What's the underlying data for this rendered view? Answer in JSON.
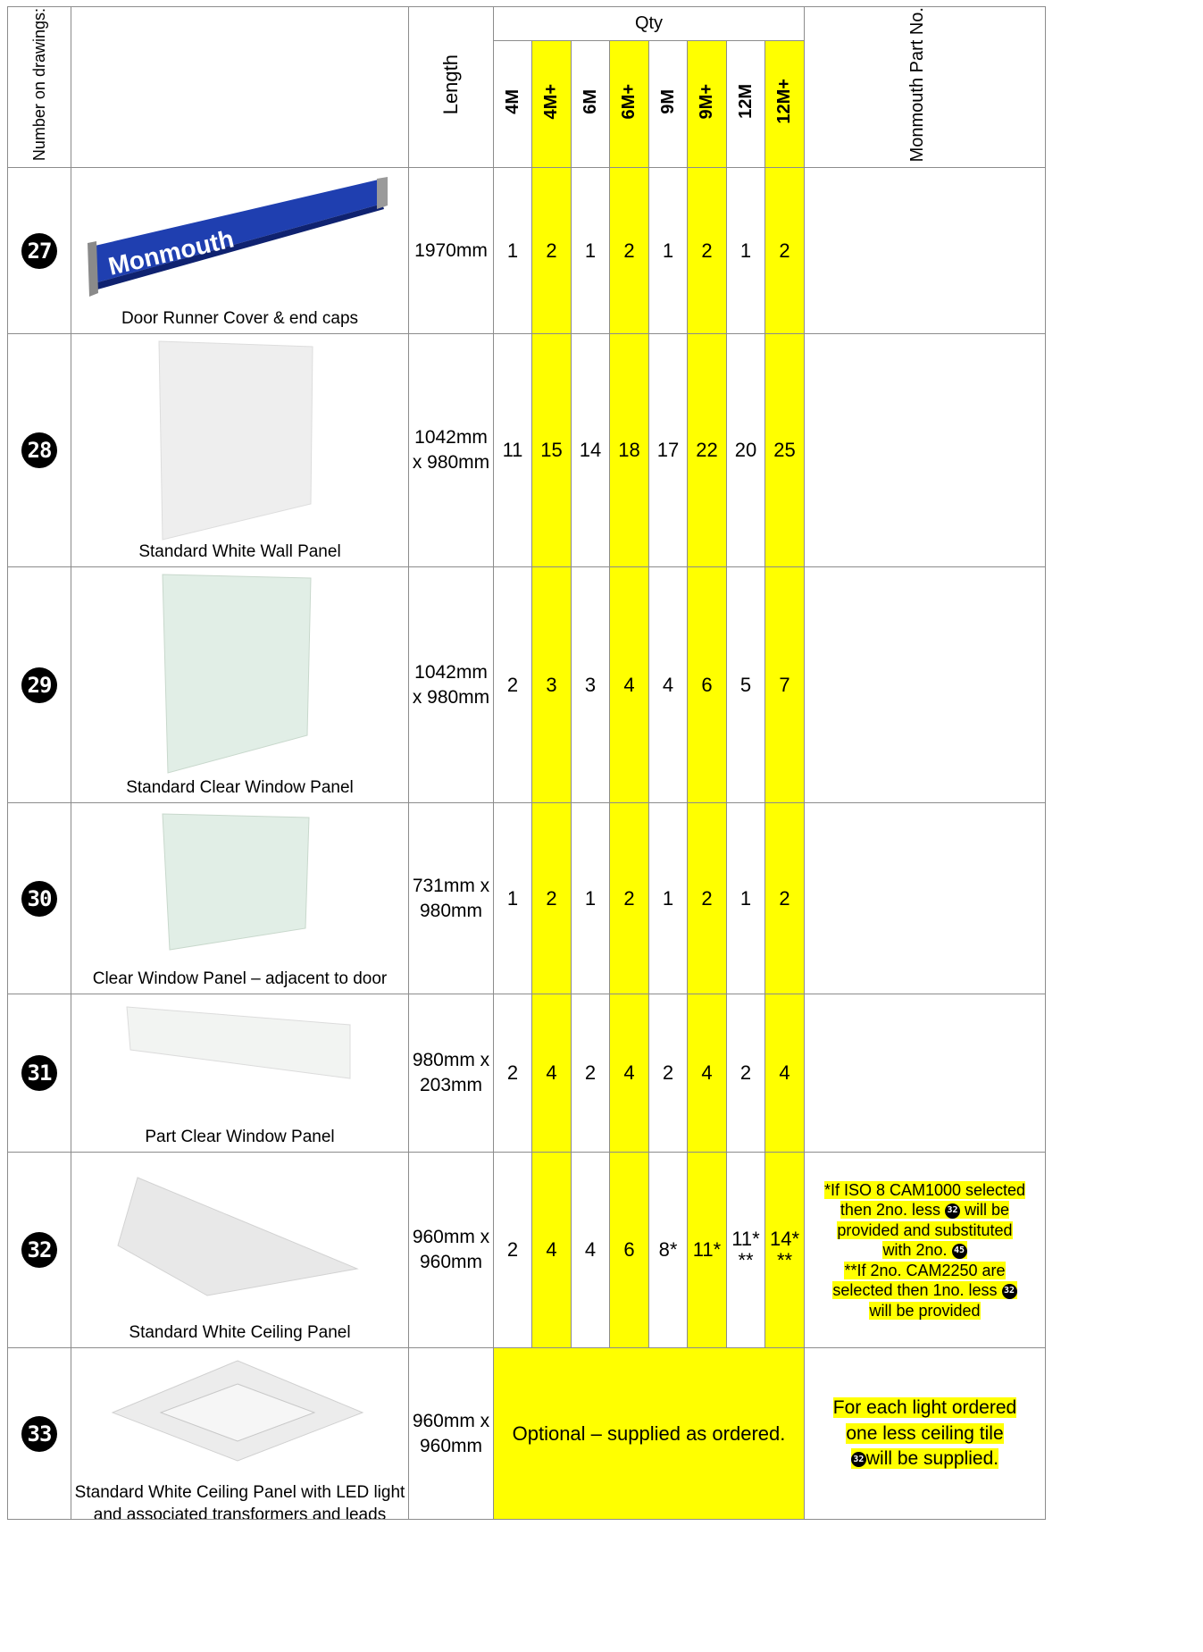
{
  "header": {
    "number_col": "Number on drawings:",
    "length_col": "Length",
    "qty": "Qty",
    "part_col": "Monmouth Part No.",
    "sizes": [
      "4M",
      "4M+",
      "6M",
      "6M+",
      "9M",
      "9M+",
      "12M",
      "12M+"
    ]
  },
  "colors": {
    "highlight": "#ffff00",
    "panel_blue": "#1f3fb0"
  },
  "rows": [
    {
      "num": "27",
      "desc": "Door Runner Cover & end caps",
      "brand": "Monmouth",
      "length": [
        "1970mm"
      ],
      "qty": [
        "1",
        "2",
        "1",
        "2",
        "1",
        "2",
        "1",
        "2"
      ],
      "part": ""
    },
    {
      "num": "28",
      "desc": "Standard White Wall Panel",
      "length": [
        "1042mm",
        "x 980mm"
      ],
      "qty": [
        "11",
        "15",
        "14",
        "18",
        "17",
        "22",
        "20",
        "25"
      ],
      "part": ""
    },
    {
      "num": "29",
      "desc": "Standard Clear Window Panel",
      "length": [
        "1042mm",
        "x 980mm"
      ],
      "qty": [
        "2",
        "3",
        "3",
        "4",
        "4",
        "6",
        "5",
        "7"
      ],
      "part": ""
    },
    {
      "num": "30",
      "desc": "Clear Window Panel – adjacent to door",
      "length": [
        "731mm x",
        "980mm"
      ],
      "qty": [
        "1",
        "2",
        "1",
        "2",
        "1",
        "2",
        "1",
        "2"
      ],
      "part": ""
    },
    {
      "num": "31",
      "desc": "Part Clear Window Panel",
      "length": [
        "980mm x",
        "203mm"
      ],
      "qty": [
        "2",
        "4",
        "2",
        "4",
        "2",
        "4",
        "2",
        "4"
      ],
      "part": ""
    },
    {
      "num": "32",
      "desc": "Standard White Ceiling Panel",
      "length": [
        "960mm x",
        "960mm"
      ],
      "qty": [
        "2",
        "4",
        "4",
        "6",
        "8*",
        "11*",
        "11*\n**",
        "14*\n**"
      ],
      "note_lines": [
        "*If ISO 8 CAM1000 selected",
        "then 2no. less",
        "will be",
        "provided and substituted",
        "with 2no.",
        "**If 2no. CAM2250 are",
        "selected then 1no. less",
        "will be provided"
      ],
      "note_badges": [
        "32",
        "45",
        "32"
      ]
    },
    {
      "num": "33",
      "desc": "Standard White Ceiling Panel with LED light and associated transformers and leads",
      "length": [
        "960mm x",
        "960mm"
      ],
      "optional": "Optional – supplied as ordered.",
      "note_lines": [
        "For each light ordered",
        "one less ceiling tile",
        "will be supplied."
      ],
      "note_badges": [
        "32"
      ]
    }
  ]
}
